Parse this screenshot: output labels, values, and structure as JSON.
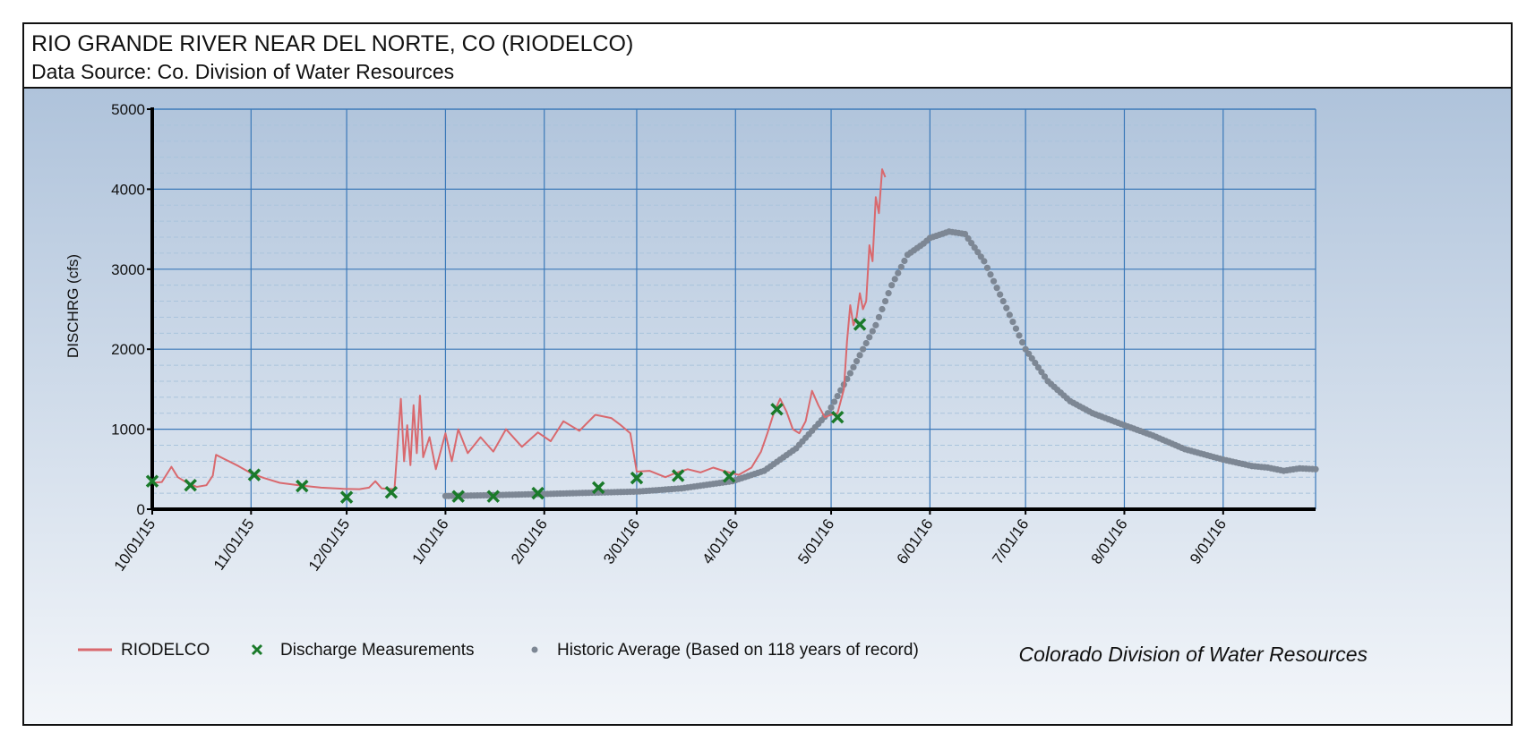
{
  "header": {
    "title": "RIO GRANDE RIVER NEAR DEL NORTE, CO (RIODELCO)",
    "subtitle": "Data Source: Co. Division of Water Resources"
  },
  "credit": "Colorado Division of Water Resources",
  "colors": {
    "riodelco": "#d9696e",
    "measurements": "#1a7a2a",
    "historic": "#7d8794",
    "grid_major": "#3a78b8",
    "grid_minor": "#a9c3dc",
    "bg_top": "#afc3db",
    "bg_bottom": "#f3f6fa"
  },
  "chart_data": {
    "type": "line",
    "title": "RIO GRANDE RIVER NEAR DEL NORTE, CO (RIODELCO)",
    "xlabel": "",
    "ylabel": "DISCHRG (cfs)",
    "ylim": [
      0,
      5000
    ],
    "xlim": [
      "2015-10-01",
      "2016-09-30"
    ],
    "y_ticks": [
      "0",
      "1000",
      "2000",
      "3000",
      "4000",
      "5000"
    ],
    "x_ticks": [
      {
        "date": "2015-10-01",
        "label": "10/01/15"
      },
      {
        "date": "2015-11-01",
        "label": "11/01/15"
      },
      {
        "date": "2015-12-01",
        "label": "12/01/15"
      },
      {
        "date": "2016-01-01",
        "label": "1/01/16"
      },
      {
        "date": "2016-02-01",
        "label": "2/01/16"
      },
      {
        "date": "2016-03-01",
        "label": "3/01/16"
      },
      {
        "date": "2016-04-01",
        "label": "4/01/16"
      },
      {
        "date": "2016-05-01",
        "label": "5/01/16"
      },
      {
        "date": "2016-06-01",
        "label": "6/01/16"
      },
      {
        "date": "2016-07-01",
        "label": "7/01/16"
      },
      {
        "date": "2016-08-01",
        "label": "8/01/16"
      },
      {
        "date": "2016-09-01",
        "label": "9/01/16"
      }
    ],
    "grid": true,
    "legend": "bottom-left",
    "series": [
      {
        "name": "RIODELCO",
        "style": "line",
        "points": [
          [
            "2015-10-01",
            330
          ],
          [
            "2015-10-04",
            340
          ],
          [
            "2015-10-07",
            530
          ],
          [
            "2015-10-09",
            400
          ],
          [
            "2015-10-12",
            330
          ],
          [
            "2015-10-15",
            280
          ],
          [
            "2015-10-18",
            300
          ],
          [
            "2015-10-20",
            420
          ],
          [
            "2015-10-21",
            680
          ],
          [
            "2015-10-24",
            620
          ],
          [
            "2015-10-28",
            540
          ],
          [
            "2015-11-01",
            450
          ],
          [
            "2015-11-05",
            390
          ],
          [
            "2015-11-10",
            330
          ],
          [
            "2015-11-16",
            300
          ],
          [
            "2015-11-23",
            270
          ],
          [
            "2015-11-30",
            255
          ],
          [
            "2015-12-05",
            250
          ],
          [
            "2015-12-08",
            270
          ],
          [
            "2015-12-10",
            350
          ],
          [
            "2015-12-12",
            260
          ],
          [
            "2015-12-16",
            250
          ],
          [
            "2015-12-18",
            1380
          ],
          [
            "2015-12-19",
            600
          ],
          [
            "2015-12-20",
            1050
          ],
          [
            "2015-12-21",
            550
          ],
          [
            "2015-12-22",
            1300
          ],
          [
            "2015-12-23",
            700
          ],
          [
            "2015-12-24",
            1420
          ],
          [
            "2015-12-25",
            650
          ],
          [
            "2015-12-27",
            900
          ],
          [
            "2015-12-29",
            500
          ],
          [
            "2016-01-01",
            950
          ],
          [
            "2016-01-03",
            600
          ],
          [
            "2016-01-05",
            1000
          ],
          [
            "2016-01-08",
            700
          ],
          [
            "2016-01-12",
            900
          ],
          [
            "2016-01-16",
            720
          ],
          [
            "2016-01-20",
            1000
          ],
          [
            "2016-01-25",
            780
          ],
          [
            "2016-01-30",
            960
          ],
          [
            "2016-02-03",
            850
          ],
          [
            "2016-02-07",
            1100
          ],
          [
            "2016-02-12",
            980
          ],
          [
            "2016-02-17",
            1180
          ],
          [
            "2016-02-22",
            1140
          ],
          [
            "2016-02-25",
            1050
          ],
          [
            "2016-02-28",
            950
          ],
          [
            "2016-03-01",
            470
          ],
          [
            "2016-03-05",
            480
          ],
          [
            "2016-03-10",
            400
          ],
          [
            "2016-03-13",
            450
          ],
          [
            "2016-03-17",
            500
          ],
          [
            "2016-03-21",
            460
          ],
          [
            "2016-03-25",
            520
          ],
          [
            "2016-03-29",
            470
          ],
          [
            "2016-04-02",
            430
          ],
          [
            "2016-04-06",
            520
          ],
          [
            "2016-04-09",
            720
          ],
          [
            "2016-04-11",
            950
          ],
          [
            "2016-04-13",
            1200
          ],
          [
            "2016-04-15",
            1380
          ],
          [
            "2016-04-17",
            1220
          ],
          [
            "2016-04-19",
            1000
          ],
          [
            "2016-04-21",
            950
          ],
          [
            "2016-04-23",
            1100
          ],
          [
            "2016-04-25",
            1480
          ],
          [
            "2016-04-27",
            1300
          ],
          [
            "2016-04-29",
            1150
          ],
          [
            "2016-05-01",
            1180
          ],
          [
            "2016-05-03",
            1200
          ],
          [
            "2016-05-05",
            1500
          ],
          [
            "2016-05-06",
            2100
          ],
          [
            "2016-05-07",
            2550
          ],
          [
            "2016-05-08",
            2300
          ],
          [
            "2016-05-09",
            2400
          ],
          [
            "2016-05-10",
            2700
          ],
          [
            "2016-05-11",
            2500
          ],
          [
            "2016-05-12",
            2600
          ],
          [
            "2016-05-13",
            3300
          ],
          [
            "2016-05-14",
            3100
          ],
          [
            "2016-05-15",
            3900
          ],
          [
            "2016-05-16",
            3700
          ],
          [
            "2016-05-17",
            4250
          ],
          [
            "2016-05-18",
            4150
          ]
        ]
      },
      {
        "name": "Discharge Measurements",
        "style": "marker-x",
        "points": [
          [
            "2015-10-01",
            350
          ],
          [
            "2015-10-13",
            300
          ],
          [
            "2015-11-02",
            430
          ],
          [
            "2015-11-17",
            290
          ],
          [
            "2015-12-01",
            150
          ],
          [
            "2015-12-15",
            210
          ],
          [
            "2016-01-05",
            160
          ],
          [
            "2016-01-16",
            160
          ],
          [
            "2016-01-30",
            200
          ],
          [
            "2016-02-18",
            270
          ],
          [
            "2016-03-01",
            390
          ],
          [
            "2016-03-14",
            420
          ],
          [
            "2016-03-30",
            410
          ],
          [
            "2016-04-14",
            1250
          ],
          [
            "2016-05-03",
            1150
          ],
          [
            "2016-05-10",
            2310
          ]
        ]
      },
      {
        "name": "Historic Average (Based on 118 years of record)",
        "style": "marker-dot",
        "points": [
          [
            "2016-01-01",
            165
          ],
          [
            "2016-01-15",
            175
          ],
          [
            "2016-02-01",
            190
          ],
          [
            "2016-02-15",
            205
          ],
          [
            "2016-03-01",
            220
          ],
          [
            "2016-03-15",
            260
          ],
          [
            "2016-03-31",
            350
          ],
          [
            "2016-04-10",
            480
          ],
          [
            "2016-04-20",
            760
          ],
          [
            "2016-04-30",
            1200
          ],
          [
            "2016-05-07",
            1700
          ],
          [
            "2016-05-15",
            2300
          ],
          [
            "2016-05-20",
            2800
          ],
          [
            "2016-05-25",
            3180
          ],
          [
            "2016-05-30",
            3320
          ],
          [
            "2016-06-01",
            3390
          ],
          [
            "2016-06-07",
            3470
          ],
          [
            "2016-06-12",
            3440
          ],
          [
            "2016-06-18",
            3100
          ],
          [
            "2016-06-24",
            2600
          ],
          [
            "2016-07-01",
            2000
          ],
          [
            "2016-07-08",
            1600
          ],
          [
            "2016-07-15",
            1350
          ],
          [
            "2016-07-22",
            1200
          ],
          [
            "2016-08-01",
            1050
          ],
          [
            "2016-08-10",
            920
          ],
          [
            "2016-08-20",
            750
          ],
          [
            "2016-09-01",
            620
          ],
          [
            "2016-09-10",
            540
          ],
          [
            "2016-09-15",
            520
          ],
          [
            "2016-09-20",
            480
          ],
          [
            "2016-09-25",
            510
          ],
          [
            "2016-09-30",
            500
          ]
        ]
      }
    ]
  }
}
